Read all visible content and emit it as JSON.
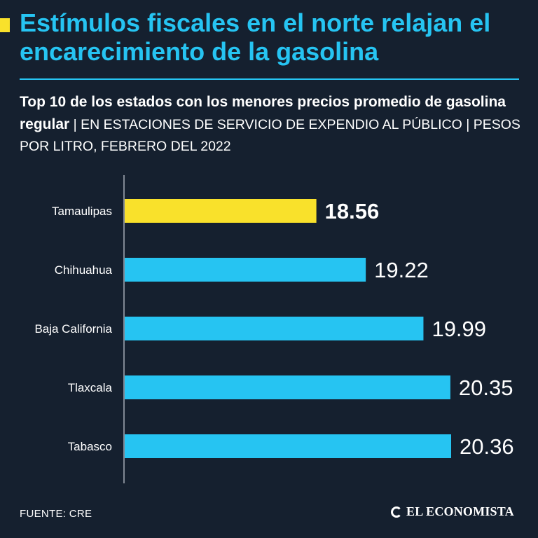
{
  "header": {
    "title": "Estímulos fiscales en el norte relajan el encarecimiento de la gasolina",
    "subtitle_bold": "Top 10 de los estados con los menores precios promedio de gasolina regular",
    "subtitle_rest": " | EN ESTACIONES DE SERVICIO DE EXPENDIO AL PÚBLICO | PESOS POR LITRO, FEBRERO DEL 2022"
  },
  "chart_data": {
    "type": "bar",
    "orientation": "horizontal",
    "categories": [
      "Tamaulipas",
      "Chihuahua",
      "Baja California",
      "Tlaxcala",
      "Tabasco"
    ],
    "values": [
      18.56,
      19.22,
      19.99,
      20.35,
      20.36
    ],
    "value_labels": [
      "18.56",
      "19.22",
      "19.99",
      "20.35",
      "20.36"
    ],
    "highlight_index": 0,
    "xlim": [
      16.0,
      20.36
    ],
    "axis_labels_visible": false
  },
  "colors": {
    "background": "#15202f",
    "accent": "#26c4f2",
    "highlight": "#f9e12b",
    "text": "#ffffff"
  },
  "footer": {
    "source": "FUENTE: CRE",
    "brand": "EL ECONOMISTA"
  }
}
